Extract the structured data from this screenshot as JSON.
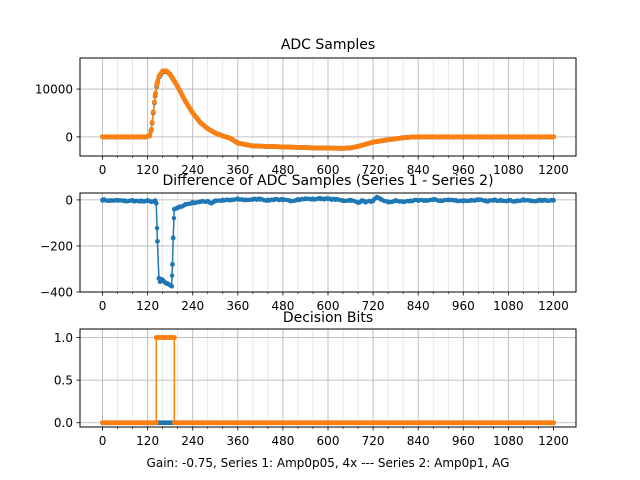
{
  "chart_data": [
    {
      "type": "line",
      "title": "ADC Samples",
      "xlim": [
        -60,
        1260
      ],
      "ylim": [
        -4000,
        16500
      ],
      "xticks": [
        0,
        120,
        240,
        360,
        480,
        600,
        720,
        840,
        960,
        1080,
        1200
      ],
      "xtick_labels": [
        "0",
        "120",
        "240",
        "360",
        "480",
        "600",
        "720",
        "840",
        "960",
        "1080",
        "1200"
      ],
      "yticks": [
        0,
        10000
      ],
      "ytick_labels": [
        "0",
        "10000"
      ],
      "grid": true,
      "series": [
        {
          "name": "Series 1",
          "color": "#1f77b4",
          "points": [
            [
              0,
              0
            ],
            [
              100,
              0
            ],
            [
              115,
              0
            ],
            [
              125,
              200
            ],
            [
              130,
              1500
            ],
            [
              135,
              5000
            ],
            [
              140,
              8500
            ],
            [
              145,
              11000
            ],
            [
              150,
              12500
            ],
            [
              160,
              13600
            ],
            [
              170,
              13700
            ],
            [
              180,
              13000
            ],
            [
              200,
              10500
            ],
            [
              220,
              7500
            ],
            [
              240,
              5000
            ],
            [
              260,
              3000
            ],
            [
              280,
              1700
            ],
            [
              300,
              800
            ],
            [
              320,
              200
            ],
            [
              340,
              -300
            ],
            [
              360,
              -1300
            ],
            [
              400,
              -1900
            ],
            [
              480,
              -2100
            ],
            [
              560,
              -2300
            ],
            [
              640,
              -2400
            ],
            [
              660,
              -2300
            ],
            [
              680,
              -2000
            ],
            [
              720,
              -1100
            ],
            [
              760,
              -600
            ],
            [
              800,
              -200
            ],
            [
              820,
              -50
            ],
            [
              840,
              0
            ],
            [
              1200,
              0
            ]
          ]
        },
        {
          "name": "Series 2",
          "color": "#ff7f0e",
          "points": [
            [
              0,
              0
            ],
            [
              100,
              0
            ],
            [
              115,
              0
            ],
            [
              125,
              200
            ],
            [
              130,
              1600
            ],
            [
              135,
              5200
            ],
            [
              140,
              8700
            ],
            [
              145,
              11200
            ],
            [
              150,
              12700
            ],
            [
              160,
              13800
            ],
            [
              170,
              13800
            ],
            [
              180,
              13100
            ],
            [
              200,
              10500
            ],
            [
              220,
              7500
            ],
            [
              240,
              5000
            ],
            [
              260,
              3000
            ],
            [
              280,
              1700
            ],
            [
              300,
              800
            ],
            [
              320,
              200
            ],
            [
              340,
              -300
            ],
            [
              360,
              -1300
            ],
            [
              400,
              -1900
            ],
            [
              480,
              -2100
            ],
            [
              560,
              -2300
            ],
            [
              640,
              -2400
            ],
            [
              660,
              -2300
            ],
            [
              680,
              -2000
            ],
            [
              720,
              -1100
            ],
            [
              760,
              -600
            ],
            [
              800,
              -200
            ],
            [
              820,
              -50
            ],
            [
              840,
              0
            ],
            [
              1200,
              0
            ]
          ]
        }
      ]
    },
    {
      "type": "line",
      "title": "Difference of ADC Samples (Series 1 - Series 2)",
      "xlim": [
        -60,
        1260
      ],
      "ylim": [
        -400,
        30
      ],
      "xticks": [
        0,
        120,
        240,
        360,
        480,
        600,
        720,
        840,
        960,
        1080,
        1200
      ],
      "xtick_labels": [
        "0",
        "120",
        "240",
        "360",
        "480",
        "600",
        "720",
        "840",
        "960",
        "1080",
        "1200"
      ],
      "yticks": [
        -400,
        -200,
        0
      ],
      "ytick_labels": [
        "−400",
        "−200",
        "0"
      ],
      "grid": true,
      "series": [
        {
          "name": "Series 1 - Series 2",
          "color": "#1f77b4",
          "points": [
            [
              0,
              0
            ],
            [
              20,
              -3
            ],
            [
              40,
              -2
            ],
            [
              60,
              -5
            ],
            [
              80,
              -3
            ],
            [
              100,
              -6
            ],
            [
              120,
              -4
            ],
            [
              130,
              -8
            ],
            [
              140,
              -5
            ],
            [
              143,
              -15
            ],
            [
              146,
              -180
            ],
            [
              150,
              -340
            ],
            [
              153,
              -355
            ],
            [
              157,
              -345
            ],
            [
              162,
              -352
            ],
            [
              168,
              -360
            ],
            [
              174,
              -364
            ],
            [
              180,
              -370
            ],
            [
              184,
              -375
            ],
            [
              186,
              -280
            ],
            [
              188,
              -165
            ],
            [
              191,
              -40
            ],
            [
              200,
              -35
            ],
            [
              220,
              -20
            ],
            [
              240,
              -12
            ],
            [
              260,
              -8
            ],
            [
              280,
              -6
            ],
            [
              290,
              -14
            ],
            [
              300,
              -4
            ],
            [
              320,
              -2
            ],
            [
              340,
              -1
            ],
            [
              360,
              3
            ],
            [
              380,
              0
            ],
            [
              400,
              2
            ],
            [
              420,
              4
            ],
            [
              440,
              -2
            ],
            [
              460,
              3
            ],
            [
              480,
              0
            ],
            [
              500,
              -5
            ],
            [
              520,
              2
            ],
            [
              540,
              5
            ],
            [
              560,
              3
            ],
            [
              580,
              6
            ],
            [
              600,
              4
            ],
            [
              620,
              2
            ],
            [
              640,
              -3
            ],
            [
              660,
              -1
            ],
            [
              680,
              -12
            ],
            [
              690,
              -3
            ],
            [
              700,
              -9
            ],
            [
              720,
              -4
            ],
            [
              730,
              10
            ],
            [
              740,
              3
            ],
            [
              760,
              -10
            ],
            [
              780,
              -4
            ],
            [
              800,
              -8
            ],
            [
              820,
              -4
            ],
            [
              840,
              -3
            ],
            [
              860,
              -2
            ],
            [
              880,
              1
            ],
            [
              900,
              -3
            ],
            [
              920,
              0
            ],
            [
              940,
              -2
            ],
            [
              960,
              -4
            ],
            [
              980,
              -2
            ],
            [
              1000,
              0
            ],
            [
              1020,
              -5
            ],
            [
              1040,
              -2
            ],
            [
              1060,
              -1
            ],
            [
              1080,
              -3
            ],
            [
              1100,
              -5
            ],
            [
              1120,
              -1
            ],
            [
              1140,
              -4
            ],
            [
              1160,
              -3
            ],
            [
              1180,
              -2
            ],
            [
              1200,
              -1
            ]
          ]
        }
      ]
    },
    {
      "type": "line",
      "title": "Decision Bits",
      "xlabel": "Gain: -0.75, Series 1: Amp0p05, 4x --- Series 2: Amp0p1, AG",
      "xlim": [
        -60,
        1260
      ],
      "ylim": [
        -0.05,
        1.1
      ],
      "xticks": [
        0,
        120,
        240,
        360,
        480,
        600,
        720,
        840,
        960,
        1080,
        1200
      ],
      "xtick_labels": [
        "0",
        "120",
        "240",
        "360",
        "480",
        "600",
        "720",
        "840",
        "960",
        "1080",
        "1200"
      ],
      "yticks": [
        0.0,
        0.5,
        1.0
      ],
      "ytick_labels": [
        "0.0",
        "0.5",
        "1.0"
      ],
      "grid": true,
      "series": [
        {
          "name": "Series 1",
          "color": "#1f77b4",
          "points": [
            [
              0,
              0
            ],
            [
              1200,
              0
            ]
          ]
        },
        {
          "name": "Series 2",
          "color": "#ff7f0e",
          "points": [
            [
              0,
              0
            ],
            [
              143,
              0
            ],
            [
              143,
              1
            ],
            [
              191,
              1
            ],
            [
              191,
              0
            ],
            [
              1200,
              0
            ]
          ]
        }
      ]
    }
  ]
}
